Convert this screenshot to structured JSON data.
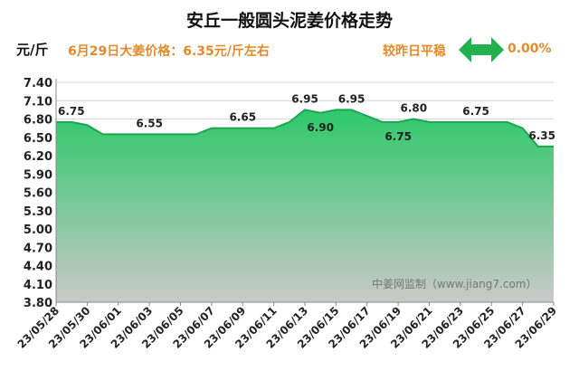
{
  "header": {
    "title": "安丘一般圆头泥姜价格走势",
    "unit": "元/斤",
    "today_text": "6月29日大姜价格：6.35元/斤左右",
    "compare_label": "较昨日平稳",
    "change_pct": "0.00%"
  },
  "watermark": "中姜网监制（www.jiang7.com）",
  "colors": {
    "area_top": "#2ec96a",
    "area_bottom": "#c9c9c9",
    "line": "#1fa552",
    "accent": "#e38a2c",
    "arrow": "#22b14c"
  },
  "icons": {
    "trend_arrow": "double-arrow-icon"
  },
  "chart_data": {
    "type": "area",
    "title": "安丘一般圆头泥姜价格走势",
    "ylabel": "元/斤",
    "ylim": [
      3.8,
      7.4
    ],
    "yticks": [
      3.8,
      4.1,
      4.4,
      4.7,
      5.0,
      5.3,
      5.6,
      5.9,
      6.2,
      6.5,
      6.8,
      7.1,
      7.4
    ],
    "x": [
      "23/05/28",
      "23/05/29",
      "23/05/30",
      "23/05/31",
      "23/06/01",
      "23/06/02",
      "23/06/03",
      "23/06/04",
      "23/06/05",
      "23/06/06",
      "23/06/07",
      "23/06/08",
      "23/06/09",
      "23/06/10",
      "23/06/11",
      "23/06/12",
      "23/06/13",
      "23/06/14",
      "23/06/15",
      "23/06/16",
      "23/06/17",
      "23/06/18",
      "23/06/19",
      "23/06/20",
      "23/06/21",
      "23/06/22",
      "23/06/23",
      "23/06/24",
      "23/06/25",
      "23/06/26",
      "23/06/27",
      "23/06/28",
      "23/06/29"
    ],
    "xticks": [
      "23/05/28",
      "23/05/30",
      "23/06/01",
      "23/06/03",
      "23/06/05",
      "23/06/07",
      "23/06/09",
      "23/06/11",
      "23/06/13",
      "23/06/15",
      "23/06/17",
      "23/06/19",
      "23/06/21",
      "23/06/23",
      "23/06/25",
      "23/06/27",
      "23/06/29"
    ],
    "values": [
      6.75,
      6.75,
      6.7,
      6.55,
      6.55,
      6.55,
      6.55,
      6.55,
      6.55,
      6.55,
      6.65,
      6.65,
      6.65,
      6.65,
      6.65,
      6.75,
      6.95,
      6.9,
      6.95,
      6.95,
      6.85,
      6.75,
      6.75,
      6.8,
      6.75,
      6.75,
      6.75,
      6.75,
      6.75,
      6.75,
      6.65,
      6.35,
      6.35
    ],
    "data_labels": [
      {
        "index": 0,
        "text": "6.75",
        "pos": "above"
      },
      {
        "index": 6,
        "text": "6.55",
        "pos": "above"
      },
      {
        "index": 12,
        "text": "6.65",
        "pos": "above"
      },
      {
        "index": 16,
        "text": "6.95",
        "pos": "above"
      },
      {
        "index": 17,
        "text": "6.90",
        "pos": "below"
      },
      {
        "index": 19,
        "text": "6.95",
        "pos": "above"
      },
      {
        "index": 22,
        "text": "6.75",
        "pos": "below"
      },
      {
        "index": 23,
        "text": "6.80",
        "pos": "above"
      },
      {
        "index": 27,
        "text": "6.75",
        "pos": "above"
      },
      {
        "index": 32,
        "text": "6.35",
        "pos": "above"
      }
    ]
  }
}
